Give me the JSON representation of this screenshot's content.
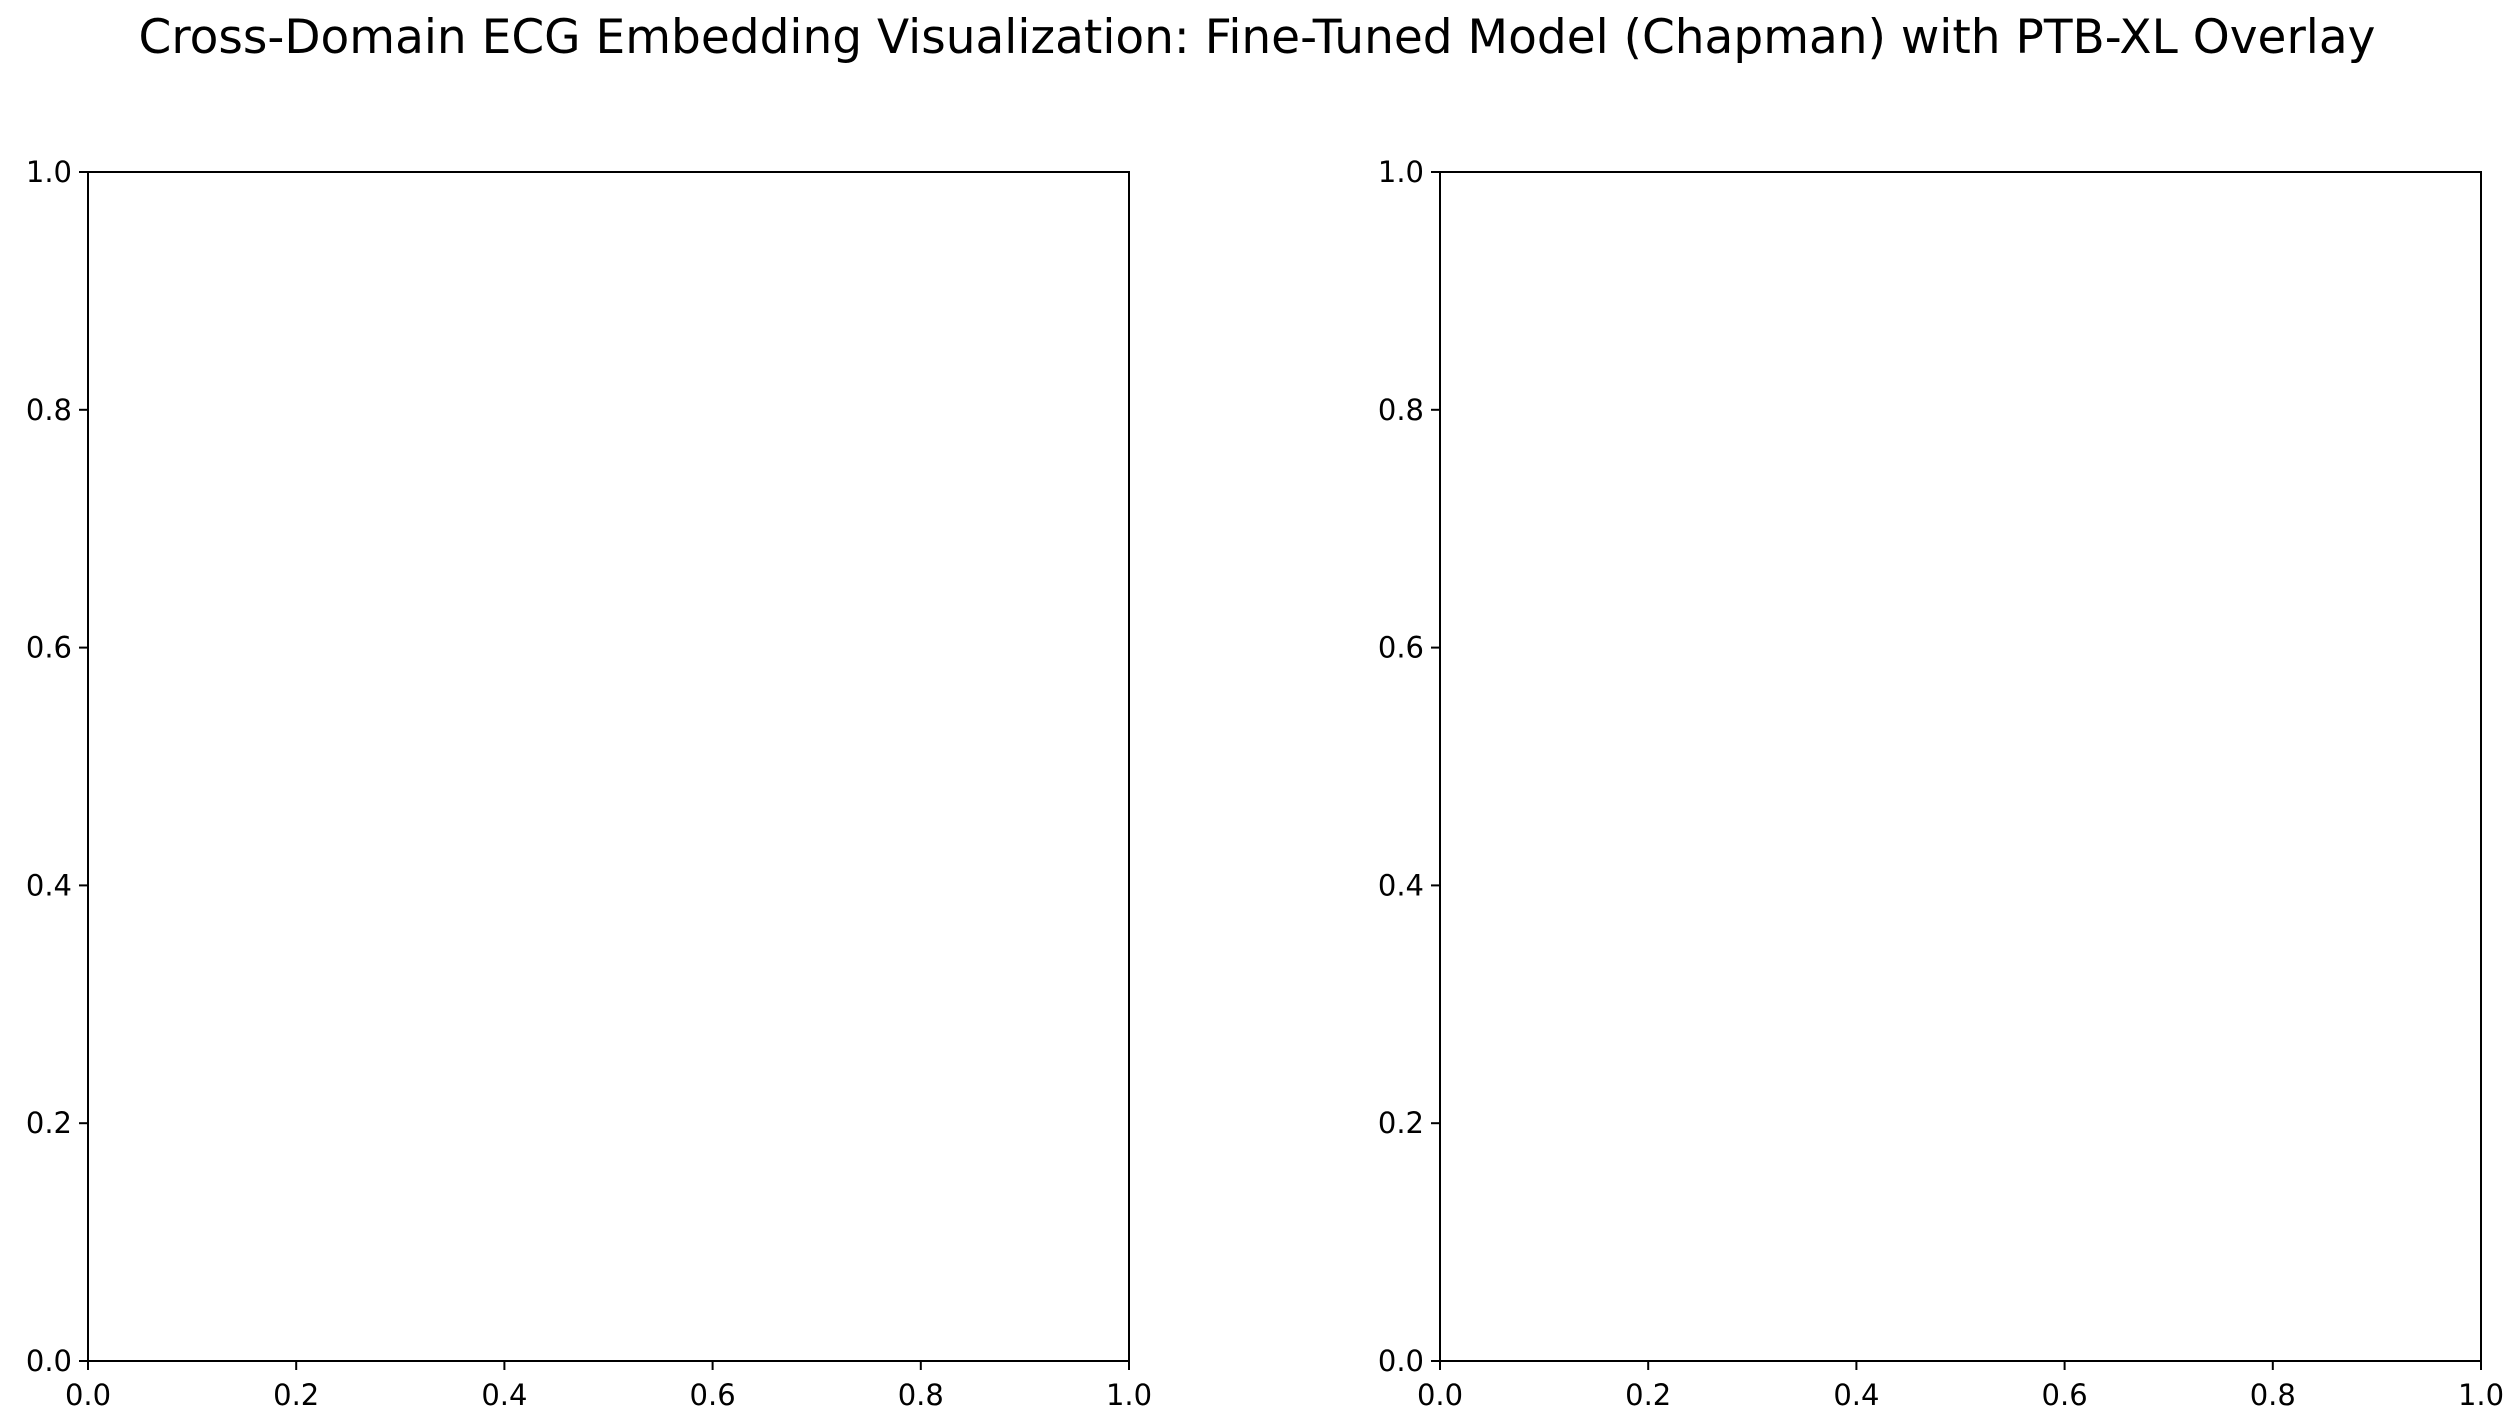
{
  "title": "Cross-Domain ECG Embedding Visualization: Fine-Tuned Model (Chapman) with PTB-XL Overlay",
  "chart_data": [
    {
      "type": "scatter",
      "title": "",
      "xlabel": "",
      "ylabel": "",
      "xlim": [
        0.0,
        1.0
      ],
      "ylim": [
        0.0,
        1.0
      ],
      "xticks": [
        "0.0",
        "0.2",
        "0.4",
        "0.6",
        "0.8",
        "1.0"
      ],
      "yticks": [
        "0.0",
        "0.2",
        "0.4",
        "0.6",
        "0.8",
        "1.0"
      ],
      "series": [],
      "grid": false
    },
    {
      "type": "scatter",
      "title": "",
      "xlabel": "",
      "ylabel": "",
      "xlim": [
        0.0,
        1.0
      ],
      "ylim": [
        0.0,
        1.0
      ],
      "xticks": [
        "0.0",
        "0.2",
        "0.4",
        "0.6",
        "0.8",
        "1.0"
      ],
      "yticks": [
        "0.0",
        "0.2",
        "0.4",
        "0.6",
        "0.8",
        "1.0"
      ],
      "series": [],
      "grid": false
    }
  ]
}
